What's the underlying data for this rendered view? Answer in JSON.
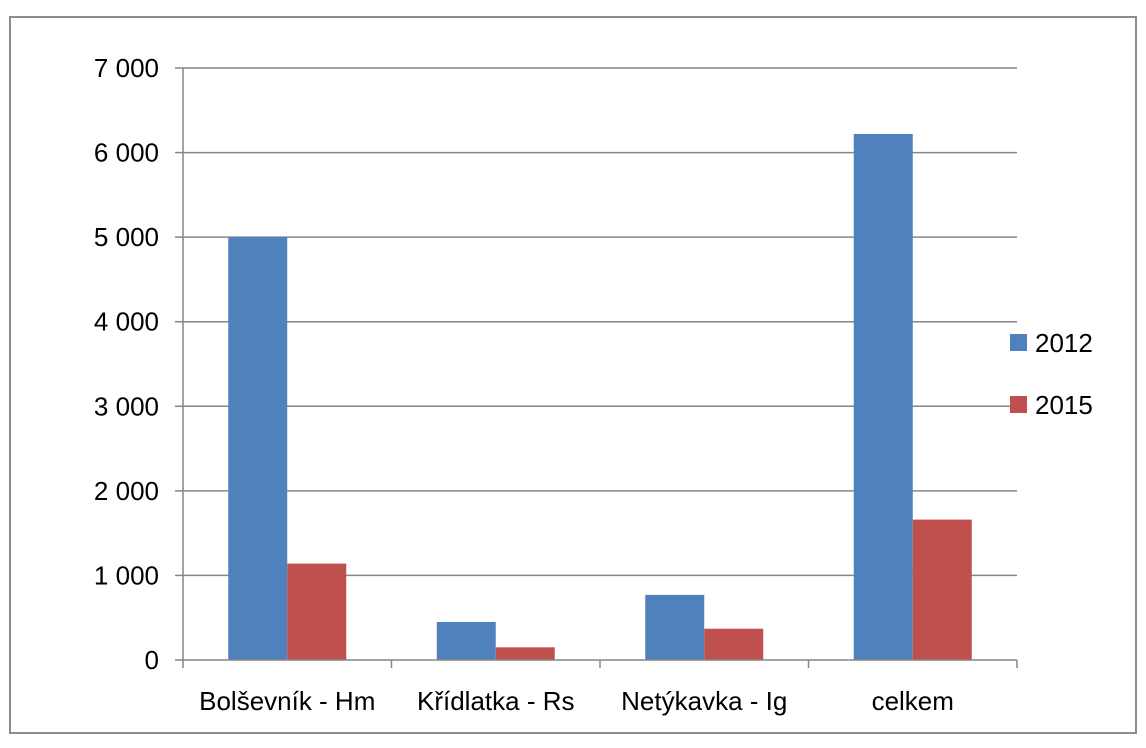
{
  "chart_data": {
    "type": "bar",
    "categories": [
      "Bolševník - Hm",
      "Křídlatka - Rs",
      "Netýkavka - Ig",
      "celkem"
    ],
    "series": [
      {
        "name": "2012",
        "color": "#4F81BD",
        "values": [
          5000,
          450,
          770,
          6220
        ]
      },
      {
        "name": "2015",
        "color": "#C0504D",
        "values": [
          1140,
          150,
          370,
          1660
        ]
      }
    ],
    "yticks": [
      0,
      1000,
      2000,
      3000,
      4000,
      5000,
      6000,
      7000
    ],
    "ytick_labels": [
      "0",
      "1 000",
      "2 000",
      "3 000",
      "4 000",
      "5 000",
      "6 000",
      "7 000"
    ],
    "ylim": [
      0,
      7000
    ],
    "title": "",
    "xlabel": "",
    "ylabel": "",
    "grid": true,
    "legend_position": "right"
  }
}
